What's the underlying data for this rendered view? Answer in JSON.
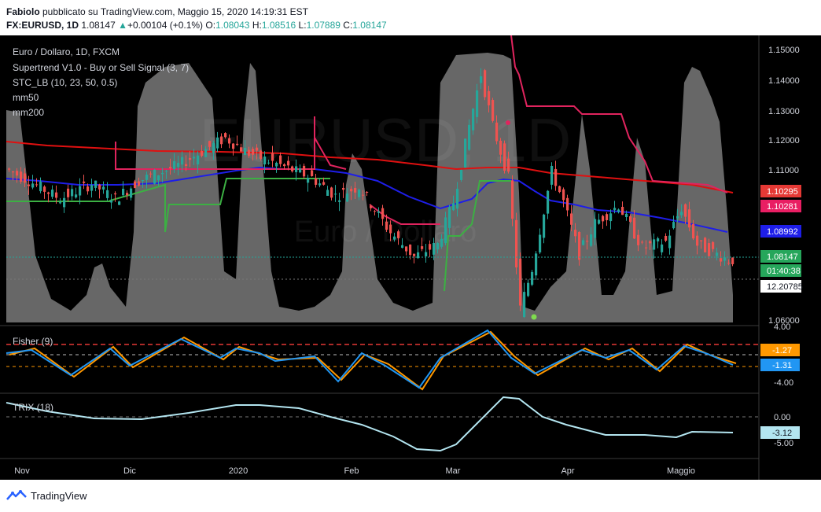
{
  "header": {
    "line1_author": "Fabiolo",
    "line1_rest": " pubblicato su TradingView.com, Maggio 15, 2020 14:19:31 EST",
    "symbol": "FX:EURUSD, 1D",
    "last": "1.08147",
    "change_arrow": "▲",
    "change": "+0.00104 (+0.1%)",
    "o_label": "O:",
    "o_value": "1.08043",
    "h_label": "H:",
    "h_value": "1.08516",
    "l_label": "L:",
    "l_value": "1.07889",
    "c_label": "C:",
    "c_value": "1.08147"
  },
  "legend": {
    "main": [
      "Euro / Dollaro, 1D, FXCM",
      "Supertrend V1.0 - Buy or Sell Signal (3, 7)",
      "STC_LB (10, 23, 50, 0.5)",
      "mm50",
      "mm200"
    ],
    "fisher": "Fisher (9)",
    "trix": "TRIX (18)"
  },
  "watermark": {
    "big": "EURUSD, 1D",
    "small": "Euro / Dollaro"
  },
  "price_axis": {
    "ticks": [
      "1.15000",
      "1.14000",
      "1.13000",
      "1.12000",
      "1.11000",
      "1.06000"
    ],
    "labels": [
      {
        "text": "1.10295",
        "color": "#e53935"
      },
      {
        "text": "1.10281",
        "color": "#e91e63"
      },
      {
        "text": "1.08992",
        "color": "#1e1ee8"
      },
      {
        "text": "1.08147",
        "color": "#26a65b"
      },
      {
        "text": "01:40:38",
        "color": "#26a65b"
      },
      {
        "text": "12.20785",
        "color": "#ffffff"
      }
    ]
  },
  "fisher_axis": {
    "ticks": [
      "4.00",
      "-4.00"
    ],
    "labels": [
      {
        "text": "-1.27",
        "color": "#ff9800"
      },
      {
        "text": "-1.31",
        "color": "#2196f3"
      }
    ]
  },
  "trix_axis": {
    "ticks": [
      "0.00",
      "-5.00"
    ],
    "labels": [
      {
        "text": "-3.12",
        "color": "#b3e5f0"
      }
    ]
  },
  "time_axis": [
    "Nov",
    "Dic",
    "2020",
    "Feb",
    "Mar",
    "Apr",
    "Maggio"
  ],
  "colors": {
    "up": "#26a69a",
    "down": "#ef5350",
    "mm50": "#1e1ee8",
    "mm200": "#e01010",
    "supertrend_up": "#3cb043",
    "supertrend_down": "#e0245e",
    "fisher": "#2196f3",
    "fisher_trigger": "#ff9800",
    "trix": "#b3e5f0",
    "stc": "#8a8a8a"
  },
  "footer": {
    "brand": "TradingView"
  },
  "chart_data": {
    "type": "line",
    "title": "Euro / Dollaro, 1D, FXCM",
    "x": [
      "Nov",
      "Dic",
      "2020",
      "Feb",
      "Mar",
      "Apr",
      "Maggio"
    ],
    "ylim": [
      1.06,
      1.155
    ],
    "series": [
      {
        "name": "mm200",
        "values": [
          1.12,
          1.118,
          1.116,
          1.115,
          1.111,
          1.108,
          1.104
        ]
      },
      {
        "name": "mm50",
        "values": [
          1.107,
          1.105,
          1.11,
          1.108,
          1.1,
          1.105,
          1.09
        ]
      }
    ],
    "last_close": 1.08147
  }
}
